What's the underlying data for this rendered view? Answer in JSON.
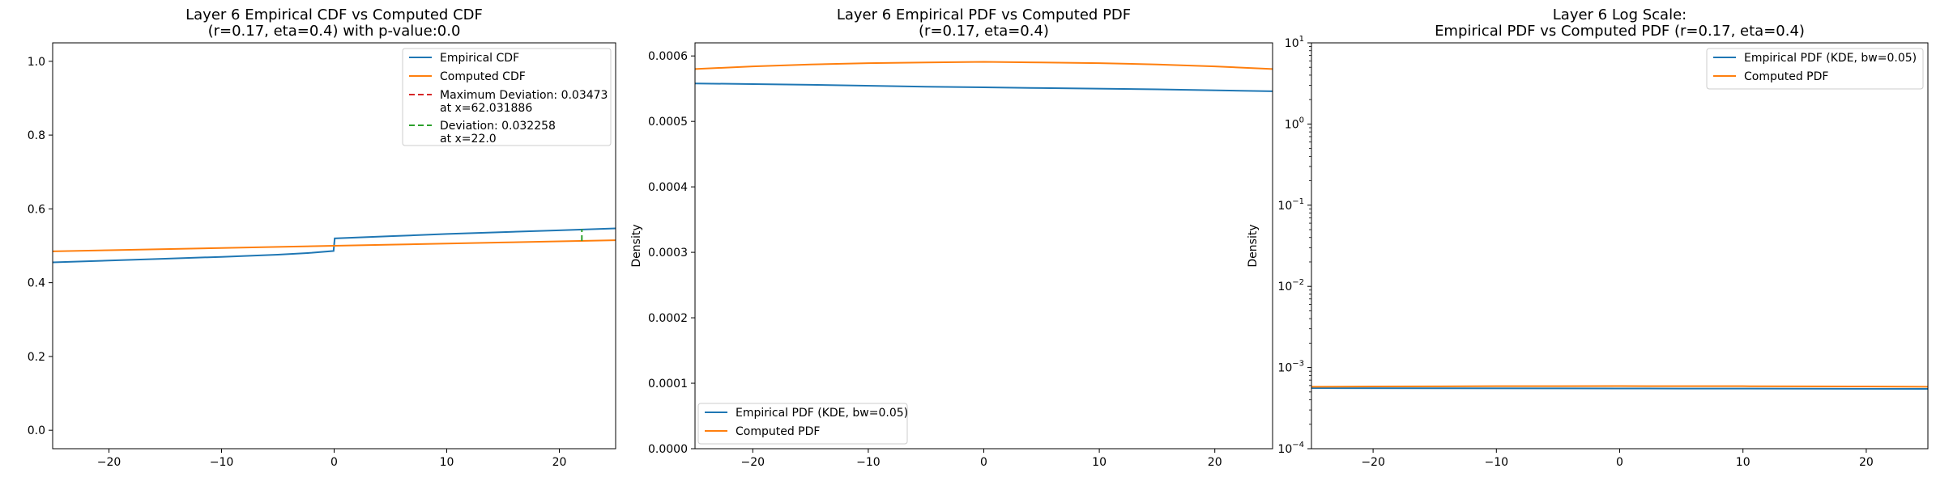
{
  "chart_data": [
    {
      "type": "line",
      "title_lines": [
        "Layer 6 Empirical CDF vs Computed CDF",
        "(r=0.17, eta=0.4) with p-value:0.0"
      ],
      "xlabel": "",
      "ylabel": "",
      "xlim": [
        -25,
        25
      ],
      "ylim": [
        -0.05,
        1.05
      ],
      "xticks": [
        -20,
        -10,
        0,
        10,
        20
      ],
      "xtick_labels": [
        "−20",
        "−10",
        "0",
        "10",
        "20"
      ],
      "yticks": [
        0.0,
        0.2,
        0.4,
        0.6,
        0.8,
        1.0
      ],
      "ytick_labels": [
        "0.0",
        "0.2",
        "0.4",
        "0.6",
        "0.8",
        "1.0"
      ],
      "yscale": "linear",
      "grid": false,
      "legend_position": "upper right",
      "series": [
        {
          "name": "Empirical CDF",
          "color": "#1f77b4",
          "style": "solid",
          "x": [
            -25,
            -20,
            -15,
            -10,
            -5,
            -2,
            -0.05,
            0.05,
            5,
            10,
            15,
            20,
            25
          ],
          "y": [
            0.455,
            0.46,
            0.465,
            0.47,
            0.476,
            0.481,
            0.486,
            0.52,
            0.526,
            0.532,
            0.537,
            0.542,
            0.547
          ]
        },
        {
          "name": "Computed CDF",
          "color": "#ff7f0e",
          "style": "solid",
          "x": [
            -25,
            -20,
            -15,
            -10,
            -5,
            0,
            5,
            10,
            15,
            20,
            25
          ],
          "y": [
            0.485,
            0.488,
            0.491,
            0.494,
            0.497,
            0.5,
            0.503,
            0.506,
            0.509,
            0.512,
            0.515
          ]
        },
        {
          "name_lines": [
            "Maximum Deviation: 0.03473",
            "at x=62.031886"
          ],
          "color": "#d62728",
          "style": "dashed",
          "x": [],
          "y": []
        },
        {
          "name_lines": [
            "Deviation: 0.032258",
            "at x=22.0"
          ],
          "color": "#2ca02c",
          "style": "dashed",
          "x": [
            22.0,
            22.0
          ],
          "y": [
            0.5132,
            0.5455
          ]
        }
      ]
    },
    {
      "type": "line",
      "title_lines": [
        "Layer 6 Empirical PDF vs Computed PDF",
        "(r=0.17, eta=0.4)"
      ],
      "xlabel": "",
      "ylabel": "Density",
      "xlim": [
        -25,
        25
      ],
      "ylim": [
        0,
        0.00062
      ],
      "xticks": [
        -20,
        -10,
        0,
        10,
        20
      ],
      "xtick_labels": [
        "−20",
        "−10",
        "0",
        "10",
        "20"
      ],
      "yticks": [
        0,
        0.0001,
        0.0002,
        0.0003,
        0.0004,
        0.0005,
        0.0006
      ],
      "ytick_labels": [
        "0.0000",
        "0.0001",
        "0.0002",
        "0.0003",
        "0.0004",
        "0.0005",
        "0.0006"
      ],
      "yscale": "linear",
      "grid": false,
      "legend_position": "lower left",
      "series": [
        {
          "name": "Empirical PDF (KDE, bw=0.05)",
          "color": "#1f77b4",
          "style": "solid",
          "x": [
            -25,
            -15,
            -5,
            0,
            5,
            15,
            25
          ],
          "y": [
            0.000558,
            0.000556,
            0.000553,
            0.000552,
            0.000551,
            0.000549,
            0.000546
          ]
        },
        {
          "name": "Computed PDF",
          "color": "#ff7f0e",
          "style": "solid",
          "x": [
            -25,
            -20,
            -15,
            -10,
            -5,
            0,
            5,
            10,
            15,
            20,
            25
          ],
          "y": [
            0.00058,
            0.000584,
            0.000587,
            0.000589,
            0.00059,
            0.000591,
            0.00059,
            0.000589,
            0.000587,
            0.000584,
            0.00058
          ]
        }
      ]
    },
    {
      "type": "line",
      "title_lines": [
        "Layer 6 Log Scale:",
        "Empirical PDF vs Computed PDF (r=0.17, eta=0.4)"
      ],
      "xlabel": "",
      "ylabel": "Density",
      "xlim": [
        -25,
        25
      ],
      "ylim": [
        0.0001,
        10
      ],
      "xticks": [
        -20,
        -10,
        0,
        10,
        20
      ],
      "xtick_labels": [
        "−20",
        "−10",
        "0",
        "10",
        "20"
      ],
      "yticks": [
        0.0001,
        0.001,
        0.01,
        0.1,
        1,
        10
      ],
      "ytick_labels": [
        {
          "base": "10",
          "exp": "−4"
        },
        {
          "base": "10",
          "exp": "−3"
        },
        {
          "base": "10",
          "exp": "−2"
        },
        {
          "base": "10",
          "exp": "−1"
        },
        {
          "base": "10",
          "exp": "0"
        },
        {
          "base": "10",
          "exp": "1"
        }
      ],
      "yscale": "log",
      "grid": false,
      "legend_position": "upper right",
      "series": [
        {
          "name": "Empirical PDF (KDE, bw=0.05)",
          "color": "#1f77b4",
          "style": "solid",
          "x": [
            -25,
            -15,
            -5,
            0,
            5,
            15,
            25
          ],
          "y": [
            0.000558,
            0.000556,
            0.000553,
            0.000552,
            0.000551,
            0.000549,
            0.000546
          ]
        },
        {
          "name": "Computed PDF",
          "color": "#ff7f0e",
          "style": "solid",
          "x": [
            -25,
            -20,
            -15,
            -10,
            -5,
            0,
            5,
            10,
            15,
            20,
            25
          ],
          "y": [
            0.00058,
            0.000584,
            0.000587,
            0.000589,
            0.00059,
            0.000591,
            0.00059,
            0.000589,
            0.000587,
            0.000584,
            0.00058
          ]
        }
      ]
    }
  ]
}
